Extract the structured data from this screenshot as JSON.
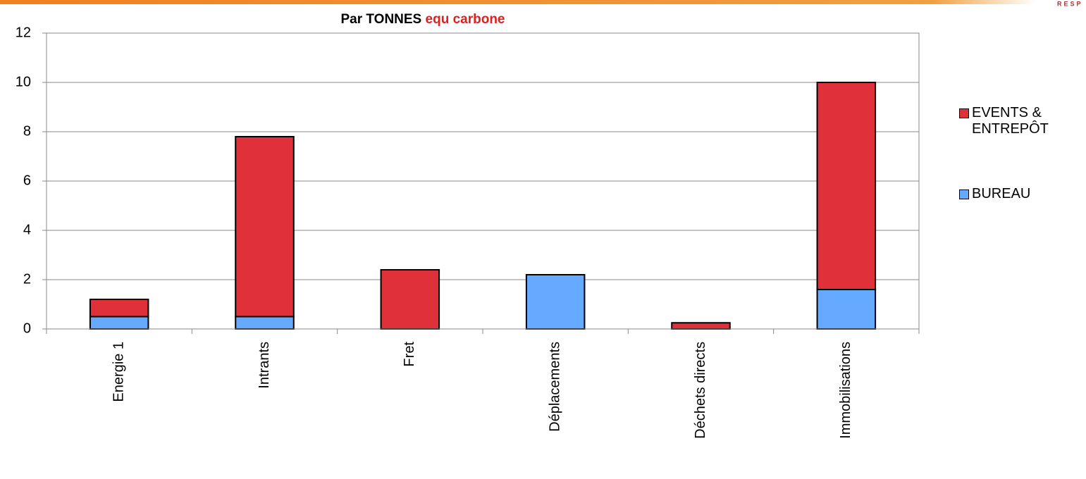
{
  "chart_data": {
    "type": "stacked_bar",
    "title": [
      "Par TONNES",
      "equ carbone"
    ],
    "logo_text": "RESP",
    "categories": [
      "Energie 1",
      "Intrants",
      "Fret",
      "Déplacements",
      "Déchets directs",
      "Immobilisations"
    ],
    "series": [
      {
        "name": "BUREAU",
        "color": "#66aaff",
        "values": [
          0.5,
          0.5,
          0,
          2.2,
          0,
          1.6
        ]
      },
      {
        "name": "EVENTS & ENTREPÔT",
        "color": "#e0303a",
        "values": [
          0.7,
          7.3,
          2.4,
          0,
          0.25,
          8.4
        ]
      }
    ],
    "ylim": [
      0,
      12
    ],
    "yticks": [
      0,
      2,
      4,
      6,
      8,
      10,
      12
    ],
    "grid": true,
    "legend": "right"
  }
}
